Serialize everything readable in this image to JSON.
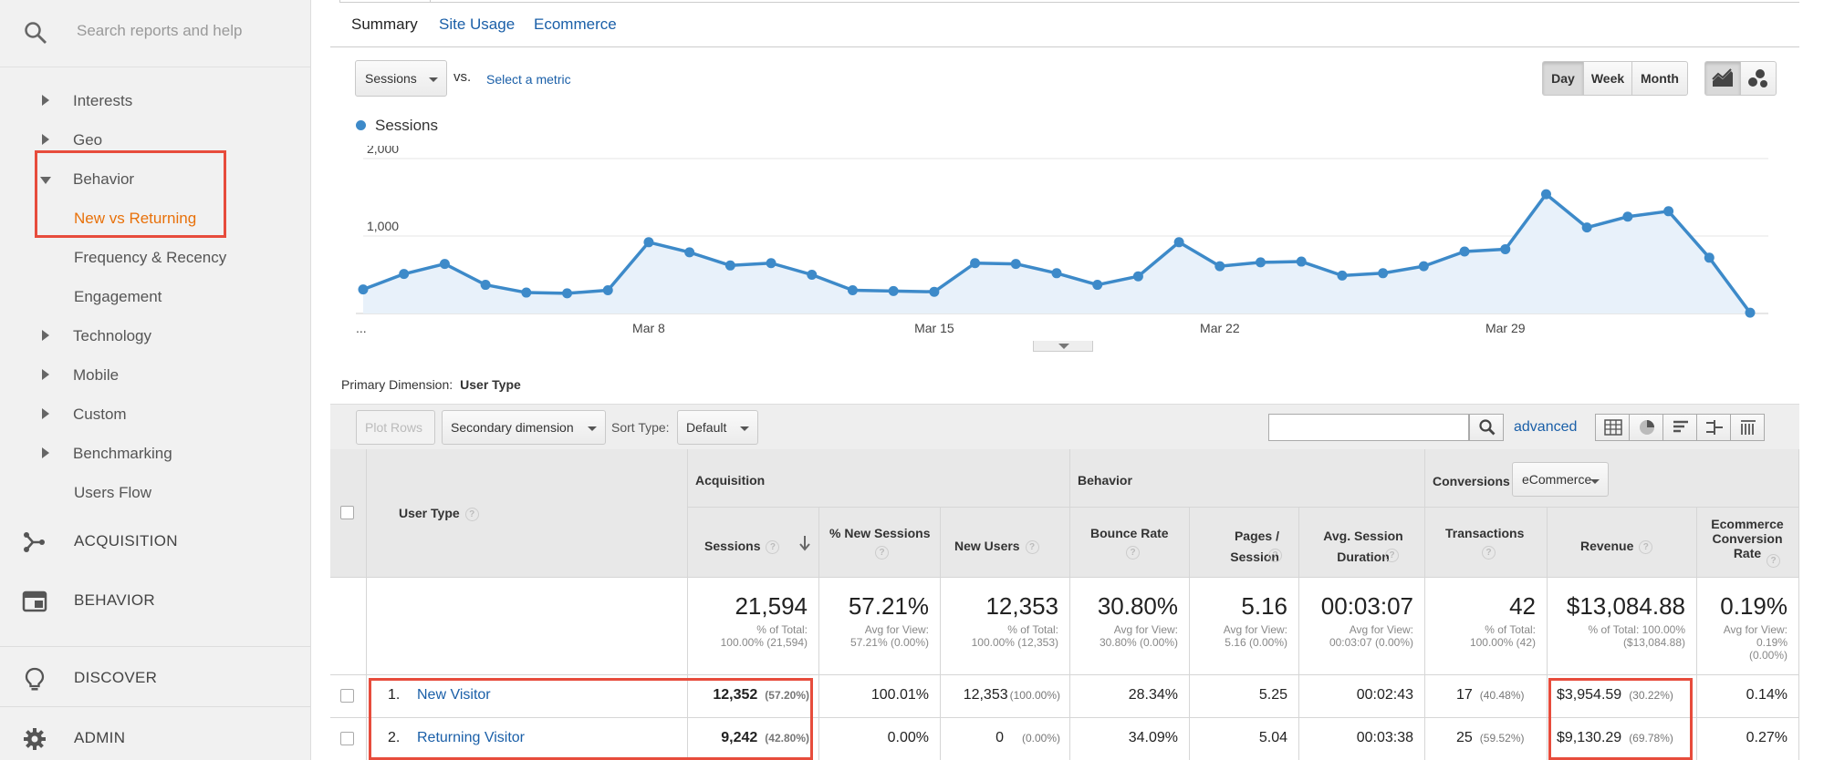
{
  "sidebar": {
    "search_placeholder": "Search reports and help",
    "items": [
      {
        "label": "Interests"
      },
      {
        "label": "Geo"
      },
      {
        "label": "Behavior"
      },
      {
        "label": "New vs Returning"
      },
      {
        "label": "Frequency & Recency"
      },
      {
        "label": "Engagement"
      },
      {
        "label": "Technology"
      },
      {
        "label": "Mobile"
      },
      {
        "label": "Custom"
      },
      {
        "label": "Benchmarking"
      },
      {
        "label": "Users Flow"
      }
    ],
    "sections": [
      {
        "label": "ACQUISITION",
        "icon": "acquisition-icon"
      },
      {
        "label": "BEHAVIOR",
        "icon": "behavior-icon"
      },
      {
        "label": "DISCOVER",
        "icon": "lightbulb-icon"
      },
      {
        "label": "ADMIN",
        "icon": "gear-icon"
      }
    ]
  },
  "tabs": [
    "Summary",
    "Site Usage",
    "Ecommerce"
  ],
  "metric": {
    "selected": "Sessions",
    "vs": "vs.",
    "select_link": "Select a metric"
  },
  "granularity": [
    "Day",
    "Week",
    "Month"
  ],
  "legend": {
    "label": "Sessions",
    "color": "#3d8ac9"
  },
  "chart_data": {
    "type": "line",
    "series": [
      {
        "name": "Sessions",
        "values": [
          310,
          510,
          640,
          370,
          270,
          260,
          300,
          920,
          790,
          620,
          650,
          500,
          300,
          290,
          280,
          650,
          640,
          520,
          370,
          480,
          920,
          610,
          660,
          670,
          490,
          520,
          610,
          800,
          830,
          1540,
          1110,
          1250,
          1320,
          720,
          10
        ]
      }
    ],
    "x_tick_labels": [
      "...",
      "Mar 8",
      "Mar 15",
      "Mar 22",
      "Mar 29"
    ],
    "x_tick_index": [
      0,
      7,
      14,
      21,
      28
    ],
    "y_tick_labels": [
      "2,000",
      "1,000"
    ],
    "ylim": [
      0,
      2000
    ],
    "color": "#3d8ac9"
  },
  "primary_dimension": {
    "label": "Primary Dimension:",
    "value": "User Type"
  },
  "toolbar": {
    "plot_rows": "Plot Rows",
    "secondary": "Secondary dimension",
    "sort_label": "Sort Type:",
    "sort_value": "Default",
    "advanced": "advanced"
  },
  "table": {
    "groups": {
      "acquisition": "Acquisition",
      "behavior": "Behavior",
      "conversions": "Conversions",
      "conv_select": "eCommerce"
    },
    "col_user_type": "User Type",
    "columns": [
      "Sessions",
      "% New Sessions",
      "New Users",
      "Bounce Rate",
      "Pages / Session",
      "Avg. Session Duration",
      "Transactions",
      "Revenue",
      "Ecommerce Conversion Rate"
    ],
    "totals": [
      {
        "big": "21,594",
        "sub": [
          "% of Total:",
          "100.00% (21,594)"
        ]
      },
      {
        "big": "57.21%",
        "sub": [
          "Avg for View:",
          "57.21% (0.00%)"
        ]
      },
      {
        "big": "12,353",
        "sub": [
          "% of Total:",
          "100.00% (12,353)"
        ]
      },
      {
        "big": "30.80%",
        "sub": [
          "Avg for View:",
          "30.80% (0.00%)"
        ]
      },
      {
        "big": "5.16",
        "sub": [
          "Avg for View:",
          "5.16 (0.00%)"
        ]
      },
      {
        "big": "00:03:07",
        "sub": [
          "Avg for View:",
          "00:03:07 (0.00%)"
        ]
      },
      {
        "big": "42",
        "sub": [
          "% of Total:",
          "100.00% (42)"
        ]
      },
      {
        "big": "$13,084.88",
        "sub": [
          "% of Total: 100.00%",
          "($13,084.88)"
        ]
      },
      {
        "big": "0.19%",
        "sub": [
          "Avg for View:",
          "0.19%",
          "(0.00%)"
        ]
      }
    ],
    "rows": [
      {
        "idx": "1.",
        "name": "New Visitor",
        "sessions": "12,352",
        "sessions_pct": "(57.20%)",
        "new_sessions": "100.01%",
        "new_users": "12,353",
        "new_users_pct": "(100.00%)",
        "bounce": "28.34%",
        "pages": "5.25",
        "duration": "00:02:43",
        "transactions": "17",
        "transactions_pct": "(40.48%)",
        "revenue": "$3,954.59",
        "revenue_pct": "(30.22%)",
        "conv": "0.14%"
      },
      {
        "idx": "2.",
        "name": "Returning Visitor",
        "sessions": "9,242",
        "sessions_pct": "(42.80%)",
        "new_sessions": "0.00%",
        "new_users": "0",
        "new_users_pct": "(0.00%)",
        "bounce": "34.09%",
        "pages": "5.04",
        "duration": "00:03:38",
        "transactions": "25",
        "transactions_pct": "(59.52%)",
        "revenue": "$9,130.29",
        "revenue_pct": "(69.78%)",
        "conv": "0.27%"
      }
    ]
  }
}
